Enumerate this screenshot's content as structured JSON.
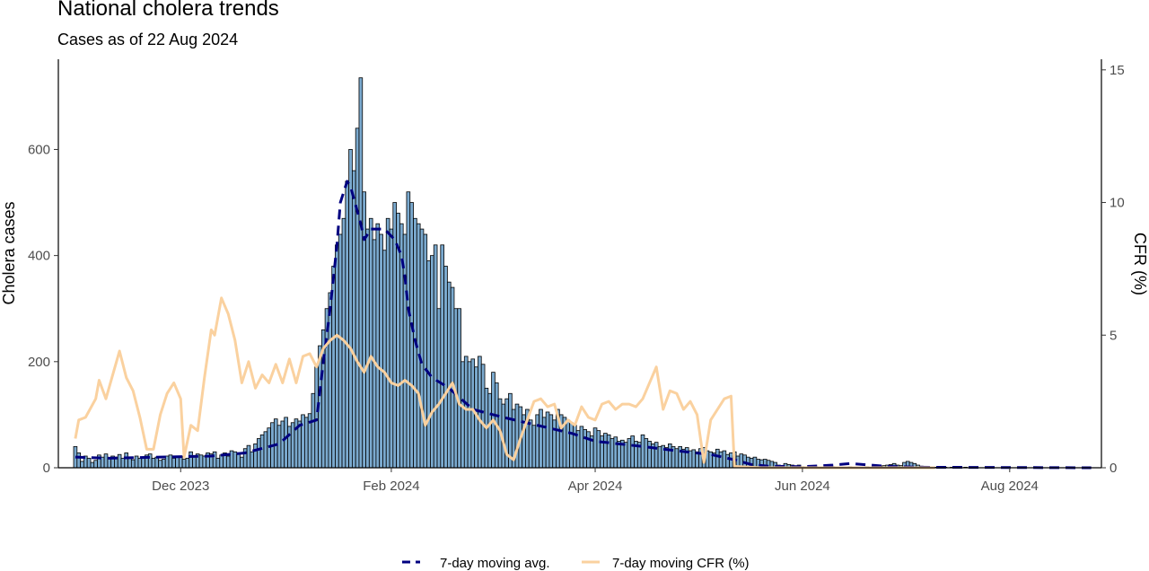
{
  "chart_data": {
    "type": "bar",
    "title": "National cholera trends",
    "subtitle": "Cases as of 22 Aug 2024",
    "ylabel": "Cholera cases",
    "y2label": "CFR (%)",
    "ylim": [
      0,
      770
    ],
    "y2lim": [
      0,
      15.4
    ],
    "yticks": [
      0,
      200,
      400,
      600
    ],
    "y2ticks": [
      0,
      5,
      10,
      15
    ],
    "x_range": [
      "2023-10-26",
      "2024-08-28"
    ],
    "xticks": [
      {
        "date": "2023-12-01",
        "label": "Dec 2023"
      },
      {
        "date": "2024-02-01",
        "label": "Feb 2024"
      },
      {
        "date": "2024-04-01",
        "label": "Apr 2024"
      },
      {
        "date": "2024-06-01",
        "label": "Jun 2024"
      },
      {
        "date": "2024-08-01",
        "label": "Aug 2024"
      }
    ],
    "grid": false,
    "legend_position": "bottom",
    "daily_cases": {
      "start_date": "2023-10-31",
      "values": [
        40,
        28,
        12,
        22,
        18,
        10,
        14,
        24,
        20,
        26,
        18,
        22,
        20,
        25,
        18,
        28,
        20,
        15,
        22,
        18,
        20,
        24,
        26,
        18,
        20,
        14,
        16,
        22,
        24,
        18,
        20,
        22,
        16,
        18,
        30,
        20,
        26,
        24,
        22,
        28,
        26,
        30,
        18,
        24,
        28,
        22,
        32,
        30,
        26,
        20,
        36,
        42,
        30,
        45,
        55,
        62,
        68,
        75,
        85,
        92,
        80,
        88,
        95,
        78,
        85,
        92,
        88,
        100,
        95,
        102,
        140,
        190,
        230,
        260,
        300,
        330,
        380,
        420,
        440,
        470,
        540,
        600,
        560,
        640,
        735,
        520,
        450,
        470,
        430,
        460,
        440,
        410,
        470,
        450,
        500,
        480,
        460,
        440,
        520,
        500,
        470,
        460,
        450,
        440,
        390,
        400,
        420,
        300,
        420,
        380,
        350,
        340,
        300,
        300,
        200,
        210,
        200,
        205,
        190,
        210,
        195,
        150,
        140,
        180,
        160,
        130,
        120,
        130,
        140,
        110,
        120,
        115,
        100,
        110,
        90,
        80,
        100,
        110,
        95,
        105,
        100,
        90,
        110,
        100,
        95,
        90,
        85,
        80,
        70,
        78,
        72,
        68,
        60,
        75,
        70,
        60,
        65,
        62,
        55,
        58,
        50,
        52,
        48,
        55,
        60,
        50,
        48,
        62,
        55,
        50,
        45,
        48,
        40,
        42,
        38,
        45,
        40,
        36,
        40,
        35,
        38,
        32,
        34,
        30,
        36,
        38,
        32,
        30,
        28,
        35,
        30,
        32,
        25,
        28,
        30,
        22,
        26,
        24,
        20,
        18,
        20,
        16,
        15,
        16,
        14,
        12,
        10,
        5,
        2,
        8,
        6,
        5,
        3,
        5,
        2,
        1,
        2,
        1,
        2,
        1,
        1,
        0,
        1,
        2,
        1,
        1,
        0,
        1,
        2,
        1,
        0,
        1,
        1,
        2,
        0,
        1,
        2,
        3,
        4,
        5,
        6,
        8,
        5,
        4,
        10,
        12,
        10,
        8,
        5,
        3,
        1,
        2,
        1,
        1,
        0,
        0,
        1,
        0,
        1,
        0,
        0,
        0,
        1,
        0,
        0,
        0,
        0,
        0,
        0,
        0,
        0,
        0,
        0,
        0,
        0,
        0,
        0,
        0,
        0,
        0,
        0,
        0,
        0,
        0,
        0,
        0,
        0,
        0,
        0,
        0,
        0,
        0,
        0,
        0,
        0,
        0,
        0,
        0,
        0,
        0,
        0,
        0,
        0,
        0,
        0,
        0,
        0,
        0,
        0,
        0,
        0,
        0,
        0,
        0,
        0
      ]
    },
    "series": [
      {
        "name": "7-day moving avg.",
        "axis": "left",
        "color": "#000080",
        "points": [
          [
            "2023-10-31",
            20
          ],
          [
            "2023-11-10",
            18
          ],
          [
            "2023-11-25",
            20
          ],
          [
            "2023-12-10",
            22
          ],
          [
            "2023-12-20",
            28
          ],
          [
            "2023-12-30",
            45
          ],
          [
            "2024-01-05",
            80
          ],
          [
            "2024-01-10",
            90
          ],
          [
            "2024-01-12",
            200
          ],
          [
            "2024-01-14",
            300
          ],
          [
            "2024-01-16",
            420
          ],
          [
            "2024-01-17",
            500
          ],
          [
            "2024-01-19",
            540
          ],
          [
            "2024-01-20",
            530
          ],
          [
            "2024-01-23",
            460
          ],
          [
            "2024-01-24",
            430
          ],
          [
            "2024-01-26",
            450
          ],
          [
            "2024-01-30",
            450
          ],
          [
            "2024-02-02",
            430
          ],
          [
            "2024-02-04",
            400
          ],
          [
            "2024-02-05",
            360
          ],
          [
            "2024-02-06",
            300
          ],
          [
            "2024-02-08",
            240
          ],
          [
            "2024-02-10",
            195
          ],
          [
            "2024-02-13",
            170
          ],
          [
            "2024-02-18",
            150
          ],
          [
            "2024-02-25",
            110
          ],
          [
            "2024-03-05",
            95
          ],
          [
            "2024-03-15",
            80
          ],
          [
            "2024-03-25",
            65
          ],
          [
            "2024-04-01",
            50
          ],
          [
            "2024-04-15",
            40
          ],
          [
            "2024-04-25",
            32
          ],
          [
            "2024-05-05",
            25
          ],
          [
            "2024-05-12",
            15
          ],
          [
            "2024-05-17",
            6
          ],
          [
            "2024-05-22",
            3
          ],
          [
            "2024-06-01",
            2
          ],
          [
            "2024-06-10",
            5
          ],
          [
            "2024-06-15",
            8
          ],
          [
            "2024-06-25",
            3
          ],
          [
            "2024-07-05",
            1
          ],
          [
            "2024-08-25",
            0
          ]
        ]
      },
      {
        "name": "7-day moving CFR (%)",
        "axis": "right",
        "color": "#FAD19F",
        "points": [
          [
            "2023-10-31",
            1.1
          ],
          [
            "2023-11-01",
            1.8
          ],
          [
            "2023-11-03",
            1.9
          ],
          [
            "2023-11-06",
            2.6
          ],
          [
            "2023-11-07",
            3.3
          ],
          [
            "2023-11-09",
            2.6
          ],
          [
            "2023-11-11",
            3.5
          ],
          [
            "2023-11-13",
            4.4
          ],
          [
            "2023-11-15",
            3.4
          ],
          [
            "2023-11-17",
            2.9
          ],
          [
            "2023-11-19",
            1.9
          ],
          [
            "2023-11-21",
            0.7
          ],
          [
            "2023-11-23",
            0.7
          ],
          [
            "2023-11-25",
            2.0
          ],
          [
            "2023-11-27",
            2.8
          ],
          [
            "2023-11-29",
            3.2
          ],
          [
            "2023-12-01",
            2.6
          ],
          [
            "2023-12-02",
            0.4
          ],
          [
            "2023-12-04",
            1.6
          ],
          [
            "2023-12-06",
            1.4
          ],
          [
            "2023-12-08",
            3.4
          ],
          [
            "2023-12-10",
            5.2
          ],
          [
            "2023-12-11",
            5.0
          ],
          [
            "2023-12-13",
            6.4
          ],
          [
            "2023-12-15",
            5.8
          ],
          [
            "2023-12-17",
            4.8
          ],
          [
            "2023-12-19",
            3.2
          ],
          [
            "2023-12-21",
            4.0
          ],
          [
            "2023-12-23",
            3.0
          ],
          [
            "2023-12-25",
            3.5
          ],
          [
            "2023-12-27",
            3.2
          ],
          [
            "2023-12-29",
            3.9
          ],
          [
            "2023-12-31",
            3.2
          ],
          [
            "2024-01-02",
            4.1
          ],
          [
            "2024-01-04",
            3.2
          ],
          [
            "2024-01-06",
            4.2
          ],
          [
            "2024-01-08",
            4.3
          ],
          [
            "2024-01-10",
            3.8
          ],
          [
            "2024-01-12",
            4.5
          ],
          [
            "2024-01-14",
            4.8
          ],
          [
            "2024-01-16",
            5.0
          ],
          [
            "2024-01-18",
            4.8
          ],
          [
            "2024-01-20",
            4.5
          ],
          [
            "2024-01-22",
            4.0
          ],
          [
            "2024-01-24",
            3.6
          ],
          [
            "2024-01-26",
            4.2
          ],
          [
            "2024-01-28",
            3.8
          ],
          [
            "2024-01-30",
            3.6
          ],
          [
            "2024-02-01",
            3.2
          ],
          [
            "2024-02-03",
            3.1
          ],
          [
            "2024-02-05",
            3.3
          ],
          [
            "2024-02-07",
            3.1
          ],
          [
            "2024-02-09",
            2.8
          ],
          [
            "2024-02-11",
            1.6
          ],
          [
            "2024-02-13",
            2.1
          ],
          [
            "2024-02-15",
            2.4
          ],
          [
            "2024-02-17",
            2.8
          ],
          [
            "2024-02-19",
            3.2
          ],
          [
            "2024-02-21",
            2.4
          ],
          [
            "2024-02-23",
            2.2
          ],
          [
            "2024-02-25",
            2.2
          ],
          [
            "2024-02-27",
            1.8
          ],
          [
            "2024-02-29",
            1.5
          ],
          [
            "2024-03-02",
            1.8
          ],
          [
            "2024-03-04",
            1.4
          ],
          [
            "2024-03-06",
            0.5
          ],
          [
            "2024-03-08",
            0.3
          ],
          [
            "2024-03-10",
            1.1
          ],
          [
            "2024-03-12",
            1.8
          ],
          [
            "2024-03-14",
            2.5
          ],
          [
            "2024-03-16",
            2.6
          ],
          [
            "2024-03-18",
            2.3
          ],
          [
            "2024-03-20",
            2.4
          ],
          [
            "2024-03-22",
            1.5
          ],
          [
            "2024-03-24",
            1.8
          ],
          [
            "2024-03-26",
            1.6
          ],
          [
            "2024-03-28",
            2.3
          ],
          [
            "2024-03-30",
            1.9
          ],
          [
            "2024-04-01",
            1.8
          ],
          [
            "2024-04-03",
            2.4
          ],
          [
            "2024-04-05",
            2.5
          ],
          [
            "2024-04-07",
            2.2
          ],
          [
            "2024-04-09",
            2.4
          ],
          [
            "2024-04-11",
            2.4
          ],
          [
            "2024-04-13",
            2.3
          ],
          [
            "2024-04-15",
            2.6
          ],
          [
            "2024-04-17",
            3.2
          ],
          [
            "2024-04-19",
            3.8
          ],
          [
            "2024-04-21",
            2.2
          ],
          [
            "2024-04-23",
            2.9
          ],
          [
            "2024-04-25",
            2.8
          ],
          [
            "2024-04-27",
            2.2
          ],
          [
            "2024-04-29",
            2.5
          ],
          [
            "2024-05-01",
            2.0
          ],
          [
            "2024-05-03",
            0.2
          ],
          [
            "2024-05-05",
            1.8
          ],
          [
            "2024-05-07",
            2.2
          ],
          [
            "2024-05-09",
            2.6
          ],
          [
            "2024-05-11",
            2.7
          ],
          [
            "2024-05-12",
            0.05
          ],
          [
            "2024-05-20",
            0
          ],
          [
            "2024-06-15",
            0
          ],
          [
            "2024-07-10",
            0
          ]
        ]
      }
    ]
  }
}
